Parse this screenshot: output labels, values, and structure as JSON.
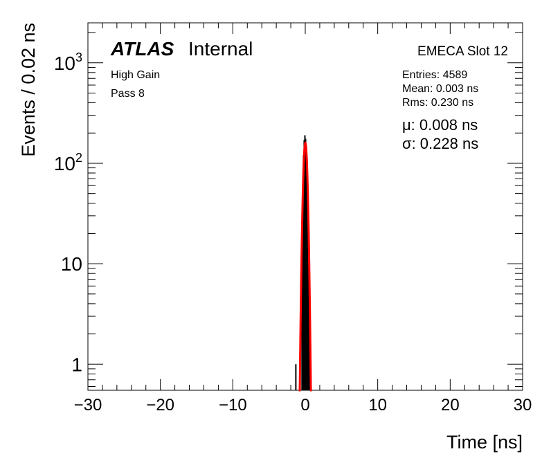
{
  "chart_data": {
    "type": "histogram",
    "xlabel": "Time [ns]",
    "ylabel": "Events / 0.02 ns",
    "xlim": [
      -30,
      30
    ],
    "ylim": [
      0.55,
      2500
    ],
    "y_scale": "log",
    "x_ticks": [
      -30,
      -20,
      -10,
      0,
      10,
      20,
      30
    ],
    "x_tick_labels": [
      "−30",
      "−20",
      "−10",
      "0",
      "10",
      "20",
      "30"
    ],
    "y_ticks": [
      1,
      10,
      100,
      1000
    ],
    "y_tick_labels": [
      "1",
      "10",
      "10^2",
      "10^3"
    ],
    "atlas_label": "ATLAS",
    "atlas_sub": "Internal",
    "annotations_left": [
      "High Gain",
      "Pass 8"
    ],
    "title_right": "EMECA Slot 12",
    "stats": [
      "Entries: 4589",
      "Mean: 0.003 ns",
      "Rms: 0.230 ns"
    ],
    "fit_params": [
      "μ: 0.008 ns",
      "σ: 0.228 ns"
    ],
    "series": [
      {
        "kind": "histogram",
        "color": "#000000",
        "x": [
          -1.3,
          -0.7,
          -0.45,
          -0.35,
          -0.25,
          -0.15,
          -0.05,
          0.05,
          0.15,
          0.25,
          0.35,
          0.45,
          0.55,
          0.65,
          0.75
        ],
        "values": [
          1,
          2,
          20,
          40,
          120,
          170,
          190,
          175,
          150,
          110,
          60,
          30,
          10,
          3,
          1
        ]
      },
      {
        "kind": "fit",
        "color": "#ff0000",
        "mean": 0.008,
        "sigma": 0.228,
        "peak": 160
      }
    ]
  }
}
